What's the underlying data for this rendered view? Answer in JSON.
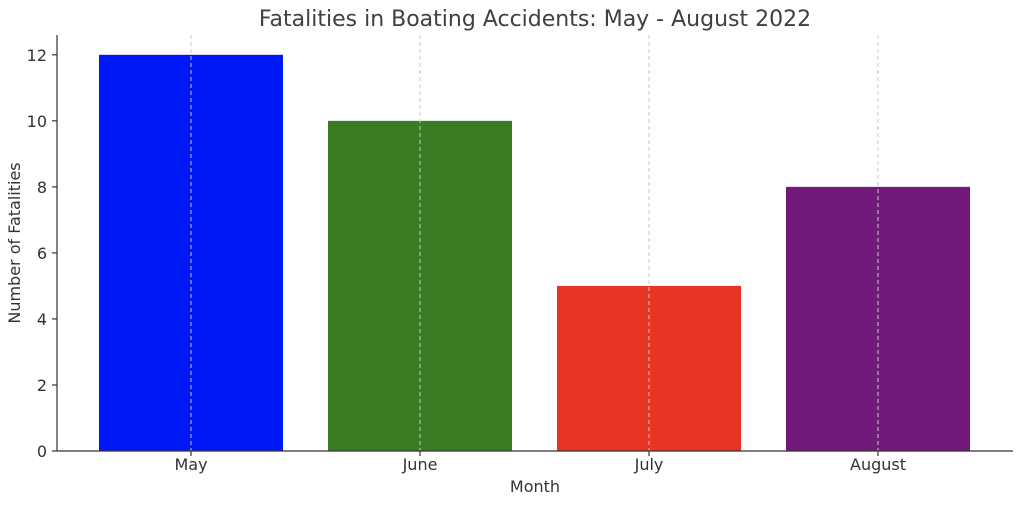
{
  "chart_data": {
    "type": "bar",
    "title": "Fatalities in Boating Accidents: May - August 2022",
    "xlabel": "Month",
    "ylabel": "Number of Fatalities",
    "categories": [
      "May",
      "June",
      "July",
      "August"
    ],
    "values": [
      12,
      10,
      5,
      8
    ],
    "colors": [
      "#0018F5",
      "#3A7C23",
      "#E83523",
      "#721A7A"
    ],
    "ylim": [
      0,
      12.6
    ],
    "yticks": [
      0,
      2,
      4,
      6,
      8,
      10,
      12
    ],
    "grid": "vertical-dashed",
    "legend": "none"
  }
}
